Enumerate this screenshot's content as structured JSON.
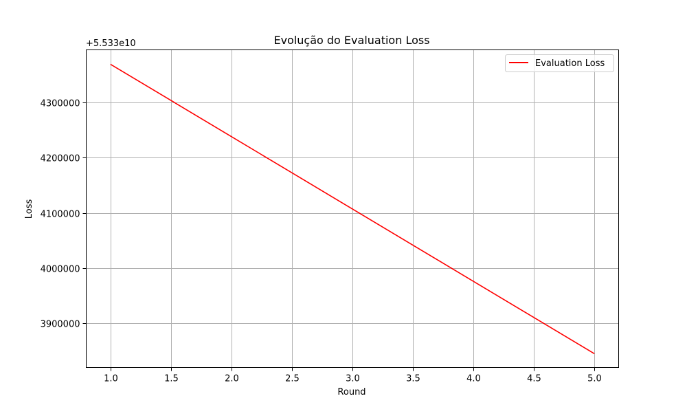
{
  "chart_data": {
    "type": "line",
    "title": "Evolução do Evaluation Loss",
    "xlabel": "Round",
    "ylabel": "Loss",
    "offset_label": "+5.533e10",
    "x_ticks": [
      1.0,
      1.5,
      2.0,
      2.5,
      3.0,
      3.5,
      4.0,
      4.5,
      5.0
    ],
    "x_tick_labels": [
      "1.0",
      "1.5",
      "2.0",
      "2.5",
      "3.0",
      "3.5",
      "4.0",
      "4.5",
      "5.0"
    ],
    "y_ticks": [
      3900000,
      4000000,
      4100000,
      4200000,
      4300000
    ],
    "y_tick_labels": [
      "3900000",
      "4000000",
      "4100000",
      "4200000",
      "4300000"
    ],
    "xlim": [
      0.8,
      5.2
    ],
    "ylim": [
      3820000,
      4395000
    ],
    "grid": true,
    "legend_position": "top-right",
    "series": [
      {
        "name": "Evaluation Loss",
        "color": "#ff0000",
        "x": [
          1,
          2,
          3,
          4,
          5
        ],
        "y": [
          4369000,
          4238000,
          4107000,
          3976000,
          3845000
        ]
      }
    ]
  }
}
